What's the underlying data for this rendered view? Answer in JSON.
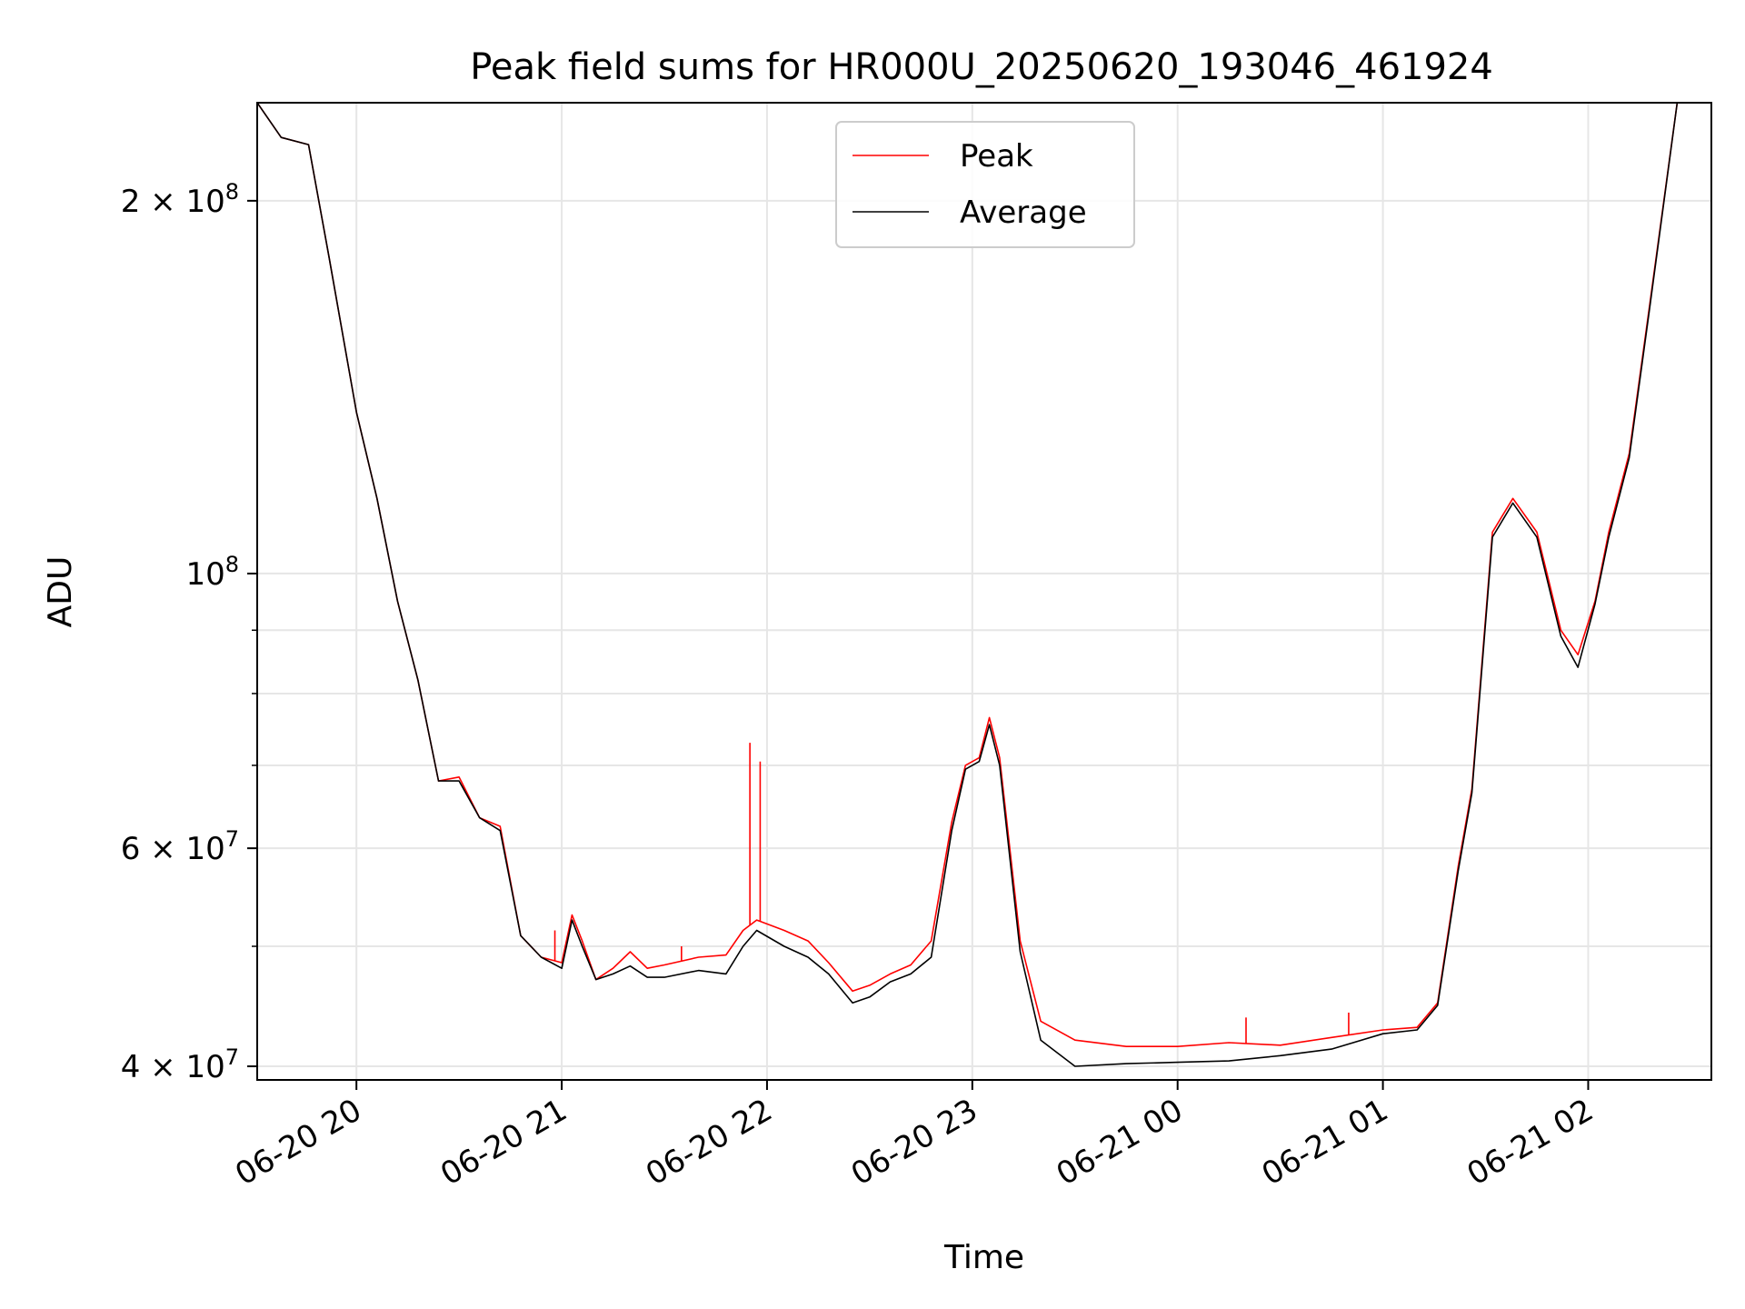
{
  "chart_data": {
    "type": "line",
    "title": "Peak field sums for HR000U_20250620_193046_461924",
    "xlabel": "Time",
    "ylabel": "ADU",
    "yscale": "log",
    "ylim": [
      39000000,
      240000000
    ],
    "xlim": [
      "2025-06-20 19:31",
      "2025-06-21 02:36"
    ],
    "grid": true,
    "legend_position": "top-center",
    "x_ticks": [
      "2025-06-20 20:00",
      "2025-06-20 21:00",
      "2025-06-20 22:00",
      "2025-06-20 23:00",
      "2025-06-21 00:00",
      "2025-06-21 01:00",
      "2025-06-21 02:00"
    ],
    "x_tick_labels": [
      "06-20 20",
      "06-20 21",
      "06-20 22",
      "06-20 23",
      "06-21 00",
      "06-21 01",
      "06-21 02"
    ],
    "y_ticks": [
      {
        "value": 40000000,
        "mantissa": "4",
        "exponent": "7"
      },
      {
        "value": 60000000,
        "mantissa": "6",
        "exponent": "7"
      },
      {
        "value": 100000000,
        "mantissa": "",
        "exponent": "8"
      },
      {
        "value": 200000000,
        "mantissa": "2",
        "exponent": "8"
      }
    ],
    "y_minor_ticks": [
      50000000,
      70000000,
      80000000,
      90000000
    ],
    "series": [
      {
        "name": "Peak",
        "color": "#ff0000",
        "points": [
          [
            "2025-06-20 19:31",
            240000000
          ],
          [
            "2025-06-20 19:38",
            225000000
          ],
          [
            "2025-06-20 19:46",
            222000000
          ],
          [
            "2025-06-20 19:52",
            180000000
          ],
          [
            "2025-06-20 20:00",
            135000000
          ],
          [
            "2025-06-20 20:06",
            115000000
          ],
          [
            "2025-06-20 20:12",
            95000000
          ],
          [
            "2025-06-20 20:18",
            82000000
          ],
          [
            "2025-06-20 20:24",
            68000000
          ],
          [
            "2025-06-20 20:30",
            68500000
          ],
          [
            "2025-06-20 20:36",
            63500000
          ],
          [
            "2025-06-20 20:42",
            62500000
          ],
          [
            "2025-06-20 20:48",
            51000000
          ],
          [
            "2025-06-20 20:54",
            49000000
          ],
          [
            "2025-06-20 21:00",
            48500000
          ],
          [
            "2025-06-20 21:03",
            53000000
          ],
          [
            "2025-06-20 21:06",
            50500000
          ],
          [
            "2025-06-20 21:10",
            47000000
          ],
          [
            "2025-06-20 21:15",
            48000000
          ],
          [
            "2025-06-20 21:20",
            49500000
          ],
          [
            "2025-06-20 21:25",
            48000000
          ],
          [
            "2025-06-20 21:30",
            48300000
          ],
          [
            "2025-06-20 21:40",
            49000000
          ],
          [
            "2025-06-20 21:48",
            49200000
          ],
          [
            "2025-06-20 21:53",
            51500000
          ],
          [
            "2025-06-20 21:57",
            52500000
          ],
          [
            "2025-06-20 22:05",
            51500000
          ],
          [
            "2025-06-20 22:12",
            50500000
          ],
          [
            "2025-06-20 22:18",
            48500000
          ],
          [
            "2025-06-20 22:25",
            46000000
          ],
          [
            "2025-06-20 22:30",
            46500000
          ],
          [
            "2025-06-20 22:36",
            47500000
          ],
          [
            "2025-06-20 22:42",
            48300000
          ],
          [
            "2025-06-20 22:48",
            50500000
          ],
          [
            "2025-06-20 22:54",
            63000000
          ],
          [
            "2025-06-20 22:58",
            70000000
          ],
          [
            "2025-06-20 23:02",
            71000000
          ],
          [
            "2025-06-20 23:05",
            76500000
          ],
          [
            "2025-06-20 23:08",
            71000000
          ],
          [
            "2025-06-20 23:14",
            50500000
          ],
          [
            "2025-06-20 23:20",
            43500000
          ],
          [
            "2025-06-20 23:30",
            42000000
          ],
          [
            "2025-06-20 23:45",
            41500000
          ],
          [
            "2025-06-21 00:00",
            41500000
          ],
          [
            "2025-06-21 00:15",
            41800000
          ],
          [
            "2025-06-21 00:30",
            41600000
          ],
          [
            "2025-06-21 00:45",
            42200000
          ],
          [
            "2025-06-21 01:00",
            42800000
          ],
          [
            "2025-06-21 01:10",
            43000000
          ],
          [
            "2025-06-21 01:16",
            45000000
          ],
          [
            "2025-06-21 01:22",
            58000000
          ],
          [
            "2025-06-21 01:26",
            67000000
          ],
          [
            "2025-06-21 01:32",
            108000000
          ],
          [
            "2025-06-21 01:38",
            115000000
          ],
          [
            "2025-06-21 01:45",
            108000000
          ],
          [
            "2025-06-21 01:52",
            90000000
          ],
          [
            "2025-06-21 01:57",
            86000000
          ],
          [
            "2025-06-21 02:02",
            95000000
          ],
          [
            "2025-06-21 02:06",
            108000000
          ],
          [
            "2025-06-21 02:12",
            125000000
          ],
          [
            "2025-06-21 02:18",
            165000000
          ],
          [
            "2025-06-21 02:26",
            240000000
          ]
        ],
        "spikes": [
          [
            "2025-06-20 21:55",
            73000000
          ],
          [
            "2025-06-20 21:58",
            70500000
          ],
          [
            "2025-06-20 20:58",
            51500000
          ],
          [
            "2025-06-20 21:35",
            50000000
          ],
          [
            "2025-06-21 00:20",
            43800000
          ],
          [
            "2025-06-21 00:50",
            44200000
          ]
        ]
      },
      {
        "name": "Average",
        "color": "#000000",
        "points": [
          [
            "2025-06-20 19:31",
            240000000
          ],
          [
            "2025-06-20 19:38",
            225000000
          ],
          [
            "2025-06-20 19:46",
            222000000
          ],
          [
            "2025-06-20 19:52",
            180000000
          ],
          [
            "2025-06-20 20:00",
            135000000
          ],
          [
            "2025-06-20 20:06",
            115000000
          ],
          [
            "2025-06-20 20:12",
            95000000
          ],
          [
            "2025-06-20 20:18",
            82000000
          ],
          [
            "2025-06-20 20:24",
            68000000
          ],
          [
            "2025-06-20 20:30",
            68000000
          ],
          [
            "2025-06-20 20:36",
            63500000
          ],
          [
            "2025-06-20 20:42",
            62000000
          ],
          [
            "2025-06-20 20:48",
            51000000
          ],
          [
            "2025-06-20 20:54",
            49000000
          ],
          [
            "2025-06-20 21:00",
            48000000
          ],
          [
            "2025-06-20 21:03",
            52500000
          ],
          [
            "2025-06-20 21:06",
            50000000
          ],
          [
            "2025-06-20 21:10",
            47000000
          ],
          [
            "2025-06-20 21:15",
            47500000
          ],
          [
            "2025-06-20 21:20",
            48200000
          ],
          [
            "2025-06-20 21:25",
            47200000
          ],
          [
            "2025-06-20 21:30",
            47200000
          ],
          [
            "2025-06-20 21:40",
            47800000
          ],
          [
            "2025-06-20 21:48",
            47500000
          ],
          [
            "2025-06-20 21:53",
            50000000
          ],
          [
            "2025-06-20 21:57",
            51500000
          ],
          [
            "2025-06-20 22:05",
            50000000
          ],
          [
            "2025-06-20 22:12",
            49000000
          ],
          [
            "2025-06-20 22:18",
            47500000
          ],
          [
            "2025-06-20 22:25",
            45000000
          ],
          [
            "2025-06-20 22:30",
            45500000
          ],
          [
            "2025-06-20 22:36",
            46800000
          ],
          [
            "2025-06-20 22:42",
            47500000
          ],
          [
            "2025-06-20 22:48",
            49000000
          ],
          [
            "2025-06-20 22:54",
            62000000
          ],
          [
            "2025-06-20 22:58",
            69500000
          ],
          [
            "2025-06-20 23:02",
            70500000
          ],
          [
            "2025-06-20 23:05",
            75500000
          ],
          [
            "2025-06-20 23:08",
            70000000
          ],
          [
            "2025-06-20 23:14",
            49500000
          ],
          [
            "2025-06-20 23:20",
            42000000
          ],
          [
            "2025-06-20 23:30",
            40000000
          ],
          [
            "2025-06-20 23:45",
            40200000
          ],
          [
            "2025-06-21 00:00",
            40300000
          ],
          [
            "2025-06-21 00:15",
            40400000
          ],
          [
            "2025-06-21 00:30",
            40800000
          ],
          [
            "2025-06-21 00:45",
            41300000
          ],
          [
            "2025-06-21 01:00",
            42500000
          ],
          [
            "2025-06-21 01:10",
            42800000
          ],
          [
            "2025-06-21 01:16",
            44800000
          ],
          [
            "2025-06-21 01:22",
            57500000
          ],
          [
            "2025-06-21 01:26",
            66500000
          ],
          [
            "2025-06-21 01:32",
            107000000
          ],
          [
            "2025-06-21 01:38",
            114000000
          ],
          [
            "2025-06-21 01:45",
            107000000
          ],
          [
            "2025-06-21 01:52",
            89000000
          ],
          [
            "2025-06-21 01:57",
            84000000
          ],
          [
            "2025-06-21 02:02",
            94500000
          ],
          [
            "2025-06-21 02:06",
            107000000
          ],
          [
            "2025-06-21 02:12",
            124000000
          ],
          [
            "2025-06-21 02:18",
            164000000
          ],
          [
            "2025-06-21 02:26",
            240000000
          ]
        ]
      }
    ]
  }
}
